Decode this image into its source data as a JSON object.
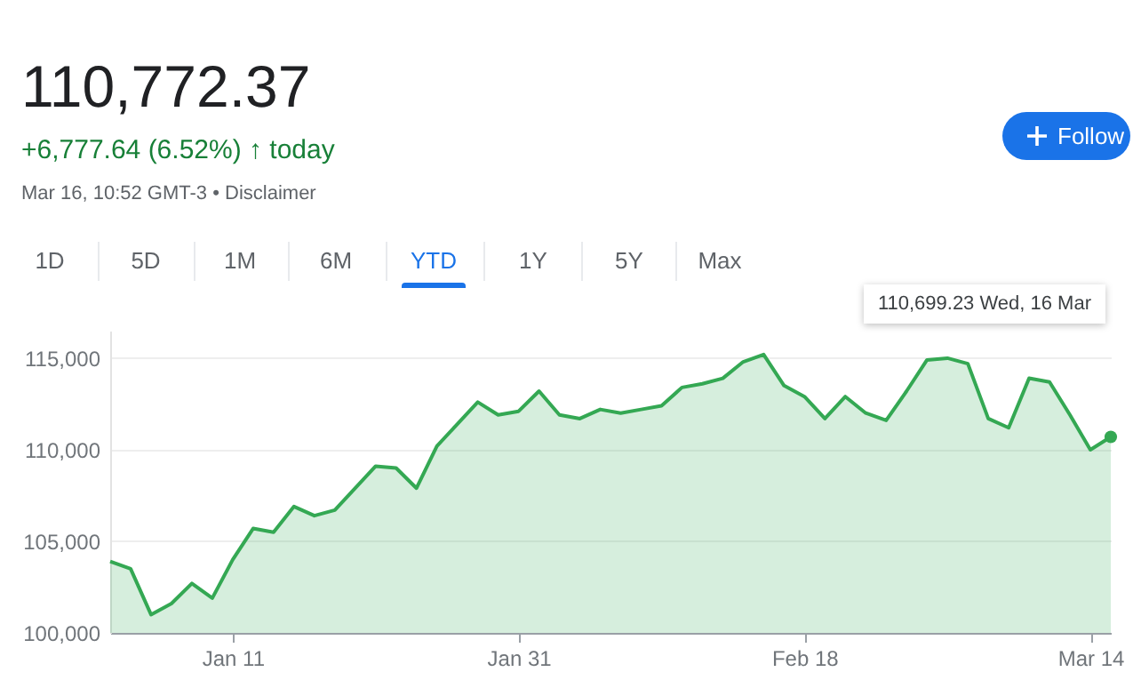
{
  "chart_data": {
    "type": "area",
    "title": "110,772.37",
    "subtitle": "+6,777.64 (6.52%) ↑ today",
    "annotations": [
      "Mar 16, 10:52 GMT-3 • Disclaimer",
      "1D",
      "5D",
      "1M",
      "6M",
      "YTD",
      "1Y",
      "5Y",
      "Max",
      "Follow",
      "110,699.23  Wed, 16 Mar"
    ],
    "categories": [
      null,
      null,
      null,
      null,
      null,
      null,
      "Jan 11",
      null,
      null,
      null,
      null,
      null,
      null,
      null,
      null,
      null,
      null,
      null,
      null,
      null,
      "Jan 31",
      null,
      null,
      null,
      null,
      null,
      null,
      null,
      null,
      null,
      null,
      null,
      null,
      null,
      "Feb 18",
      null,
      null,
      null,
      null,
      null,
      null,
      null,
      null,
      null,
      null,
      null,
      null,
      null,
      "Mar 14",
      null
    ],
    "color": "#34a853",
    "values": [
      103900,
      103500,
      101000,
      101600,
      102700,
      101900,
      104000,
      105700,
      105500,
      106900,
      106400,
      106700,
      107900,
      109100,
      109000,
      107900,
      110200,
      111400,
      112600,
      111900,
      112100,
      113200,
      111900,
      111700,
      112200,
      112000,
      112200,
      112400,
      113400,
      113600,
      113900,
      114800,
      115200,
      113500,
      112900,
      111700,
      112900,
      112000,
      111600,
      113200,
      114900,
      115000,
      114700,
      111700,
      111200,
      113900,
      113700,
      111900,
      110000,
      110700
    ],
    "ylim": [
      100000,
      116500
    ],
    "yticks": [
      {
        "value": 100000,
        "label": "100,000"
      },
      {
        "value": 105000,
        "label": "105,000"
      },
      {
        "value": 110000,
        "label": "110,000"
      },
      {
        "value": 115000,
        "label": "115,000"
      }
    ],
    "grid": "y"
  }
}
